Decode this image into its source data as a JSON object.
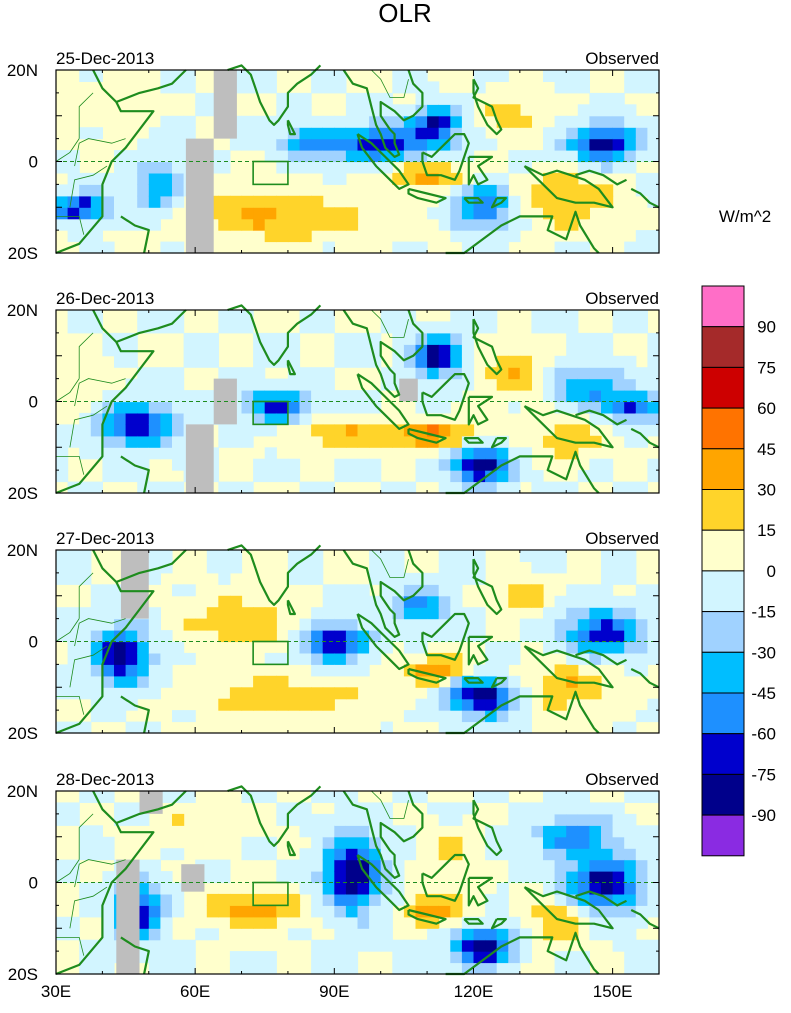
{
  "chart_data": {
    "type": "heatmap",
    "title": "OLR",
    "units_label": "W/m^2",
    "x_ticks": [
      "30E",
      "60E",
      "90E",
      "120E",
      "150E"
    ],
    "x_tick_values": [
      30,
      60,
      90,
      120,
      150
    ],
    "x_range": [
      30,
      160
    ],
    "y_ticks": [
      "20N",
      "0",
      "20S"
    ],
    "y_tick_values": [
      20,
      0,
      -20
    ],
    "y_range": [
      -20,
      20
    ],
    "colorbar_labels": [
      "90",
      "75",
      "60",
      "45",
      "30",
      "15",
      "0",
      "-15",
      "-30",
      "-45",
      "-60",
      "-75",
      "-90"
    ],
    "colorbar_colors": [
      "#ff6ec7",
      "#a52a2a",
      "#cd0000",
      "#ff7300",
      "#ffa500",
      "#ffd42a",
      "#ffffcc",
      "#d2f5ff",
      "#a0d2ff",
      "#00beff",
      "#1e90ff",
      "#0000cd",
      "#00008b",
      "#8a2be2"
    ],
    "missing_color": "#bebebe",
    "coast_color": "#1e8c1e",
    "panels": [
      {
        "date": "25-Dec-2013",
        "label": "Observed",
        "features": [
          {
            "lon": 100,
            "lat": 4,
            "sx": 10,
            "sy": 4,
            "v": -70
          },
          {
            "lon": 84,
            "lat": 4,
            "sx": 6,
            "sy": 3,
            "v": -55
          },
          {
            "lon": 112,
            "lat": 8,
            "sx": 5,
            "sy": 4,
            "v": -75
          },
          {
            "lon": 148,
            "lat": 4,
            "sx": 7,
            "sy": 4,
            "v": -85
          },
          {
            "lon": 35,
            "lat": -10,
            "sx": 6,
            "sy": 3,
            "v": -75
          },
          {
            "lon": 52,
            "lat": -6,
            "sx": 5,
            "sy": 6,
            "v": -45
          },
          {
            "lon": 122,
            "lat": -10,
            "sx": 6,
            "sy": 5,
            "v": -60
          },
          {
            "lon": 78,
            "lat": -12,
            "sx": 22,
            "sy": 5,
            "v": 32
          },
          {
            "lon": 110,
            "lat": -3,
            "sx": 8,
            "sy": 3,
            "v": 38
          },
          {
            "lon": 140,
            "lat": -8,
            "sx": 10,
            "sy": 6,
            "v": 30
          },
          {
            "lon": 128,
            "lat": 10,
            "sx": 6,
            "sy": 4,
            "v": 25
          },
          {
            "lon": 40,
            "lat": 12,
            "sx": 10,
            "sy": 6,
            "v": 10
          }
        ],
        "missing": [
          {
            "lon0": 64,
            "lon1": 69,
            "lat0": 5,
            "lat1": 20
          },
          {
            "lon0": 58,
            "lon1": 64,
            "lat0": -20,
            "lat1": 5
          }
        ]
      },
      {
        "date": "26-Dec-2013",
        "label": "Observed",
        "features": [
          {
            "lon": 112,
            "lat": 10,
            "sx": 5,
            "sy": 4,
            "v": -85
          },
          {
            "lon": 122,
            "lat": -14,
            "sx": 6,
            "sy": 4,
            "v": -90
          },
          {
            "lon": 48,
            "lat": -5,
            "sx": 8,
            "sy": 5,
            "v": -70
          },
          {
            "lon": 78,
            "lat": -1,
            "sx": 7,
            "sy": 4,
            "v": -60
          },
          {
            "lon": 145,
            "lat": 3,
            "sx": 7,
            "sy": 5,
            "v": -50
          },
          {
            "lon": 155,
            "lat": -1,
            "sx": 5,
            "sy": 3,
            "v": -65
          },
          {
            "lon": 110,
            "lat": -7,
            "sx": 10,
            "sy": 3,
            "v": 45
          },
          {
            "lon": 90,
            "lat": -7,
            "sx": 10,
            "sy": 3,
            "v": 30
          },
          {
            "lon": 128,
            "lat": 6,
            "sx": 6,
            "sy": 5,
            "v": 30
          },
          {
            "lon": 140,
            "lat": -8,
            "sx": 8,
            "sy": 5,
            "v": 25
          },
          {
            "lon": 35,
            "lat": 5,
            "sx": 5,
            "sy": 6,
            "v": 20
          }
        ],
        "missing": [
          {
            "lon0": 64,
            "lon1": 69,
            "lat0": -5,
            "lat1": 5
          },
          {
            "lon0": 58,
            "lon1": 64,
            "lat0": -20,
            "lat1": -5
          },
          {
            "lon0": 104,
            "lon1": 108,
            "lat0": 0,
            "lat1": 5
          }
        ]
      },
      {
        "date": "27-Dec-2013",
        "label": "Observed",
        "features": [
          {
            "lon": 44,
            "lat": -3,
            "sx": 6,
            "sy": 6,
            "v": -85
          },
          {
            "lon": 90,
            "lat": 0,
            "sx": 7,
            "sy": 4,
            "v": -75
          },
          {
            "lon": 122,
            "lat": -12,
            "sx": 7,
            "sy": 4,
            "v": -92
          },
          {
            "lon": 148,
            "lat": 2,
            "sx": 8,
            "sy": 5,
            "v": -70
          },
          {
            "lon": 108,
            "lat": 8,
            "sx": 6,
            "sy": 4,
            "v": -50
          },
          {
            "lon": 112,
            "lat": -6,
            "sx": 8,
            "sy": 3,
            "v": 40
          },
          {
            "lon": 70,
            "lat": 4,
            "sx": 12,
            "sy": 6,
            "v": 25
          },
          {
            "lon": 80,
            "lat": -12,
            "sx": 18,
            "sy": 4,
            "v": 30
          },
          {
            "lon": 140,
            "lat": -10,
            "sx": 10,
            "sy": 5,
            "v": 30
          },
          {
            "lon": 130,
            "lat": 10,
            "sx": 5,
            "sy": 4,
            "v": 25
          }
        ],
        "missing": [
          {
            "lon0": 44,
            "lon1": 50,
            "lat0": 5,
            "lat1": 20
          }
        ]
      },
      {
        "date": "28-Dec-2013",
        "label": "Observed",
        "features": [
          {
            "lon": 94,
            "lat": 2,
            "sx": 6,
            "sy": 8,
            "v": -90
          },
          {
            "lon": 122,
            "lat": -14,
            "sx": 6,
            "sy": 4,
            "v": -90
          },
          {
            "lon": 148,
            "lat": 0,
            "sx": 8,
            "sy": 6,
            "v": -80
          },
          {
            "lon": 48,
            "lat": -6,
            "sx": 5,
            "sy": 6,
            "v": -75
          },
          {
            "lon": 142,
            "lat": 10,
            "sx": 8,
            "sy": 4,
            "v": -55
          },
          {
            "lon": 72,
            "lat": -6,
            "sx": 10,
            "sy": 4,
            "v": 38
          },
          {
            "lon": 112,
            "lat": -6,
            "sx": 7,
            "sy": 3,
            "v": 40
          },
          {
            "lon": 138,
            "lat": -8,
            "sx": 6,
            "sy": 5,
            "v": 30
          },
          {
            "lon": 115,
            "lat": 6,
            "sx": 6,
            "sy": 5,
            "v": 20
          },
          {
            "lon": 60,
            "lat": 12,
            "sx": 10,
            "sy": 4,
            "v": 15
          }
        ],
        "missing": [
          {
            "lon0": 43,
            "lon1": 48,
            "lat0": -20,
            "lat1": 5
          },
          {
            "lon0": 48,
            "lon1": 53,
            "lat0": 15,
            "lat1": 20
          },
          {
            "lon0": 57,
            "lon1": 62,
            "lat0": -2,
            "lat1": 4
          }
        ]
      }
    ],
    "box_region": {
      "lon0": 72.5,
      "lon1": 80,
      "lat0": -5,
      "lat1": 0
    }
  }
}
